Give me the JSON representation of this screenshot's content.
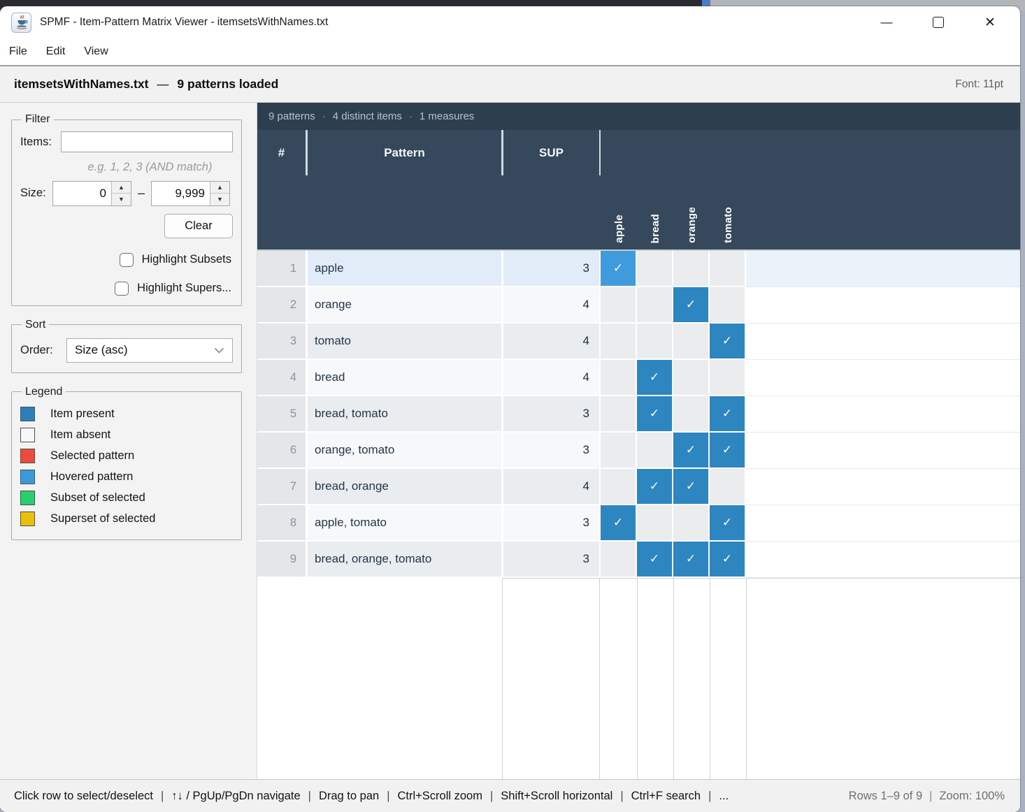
{
  "window": {
    "title": "SPMF - Item-Pattern Matrix Viewer - itemsetsWithNames.txt",
    "controls": {
      "minimize": "—",
      "close": "✕"
    }
  },
  "menu": {
    "items": [
      "File",
      "Edit",
      "View"
    ]
  },
  "header": {
    "filename": "itemsetsWithNames.txt",
    "separator": "—",
    "loaded": "9 patterns loaded",
    "font_label": "Font: 11pt"
  },
  "sidebar": {
    "filter": {
      "title": "Filter",
      "items_label": "Items:",
      "items_value": "",
      "hint": "e.g. 1, 2, 3 (AND match)",
      "size_label": "Size:",
      "size_min": "0",
      "range_dash": "–",
      "size_max": "9,999",
      "clear_label": "Clear",
      "checkbox_subsets": "Highlight Subsets",
      "checkbox_supersets": "Highlight Supers...",
      "subsets_checked": false,
      "supersets_checked": false
    },
    "sort": {
      "title": "Sort",
      "order_label": "Order:",
      "order_value": "Size (asc)"
    },
    "legend": {
      "title": "Legend",
      "entries": [
        {
          "label": "Item present",
          "color": "#2E7FB9"
        },
        {
          "label": "Item absent",
          "color": "#F7F7F7"
        },
        {
          "label": "Selected pattern",
          "color": "#E74C3C"
        },
        {
          "label": "Hovered pattern",
          "color": "#3D9AD9"
        },
        {
          "label": "Subset of selected",
          "color": "#2ECC71"
        },
        {
          "label": "Superset of selected",
          "color": "#E9C012"
        }
      ]
    }
  },
  "table": {
    "info_parts": [
      "9 patterns",
      "4 distinct items",
      "1 measures"
    ],
    "info_separator": "·",
    "columns": {
      "index": "#",
      "pattern": "Pattern",
      "sup": "SUP"
    },
    "items": [
      "apple",
      "bread",
      "orange",
      "tomato"
    ],
    "check_glyph": "✓",
    "rows": [
      {
        "n": "1",
        "pattern": "apple",
        "sup": "3",
        "cells": [
          1,
          0,
          0,
          0
        ],
        "hovered": true
      },
      {
        "n": "2",
        "pattern": "orange",
        "sup": "4",
        "cells": [
          0,
          0,
          1,
          0
        ]
      },
      {
        "n": "3",
        "pattern": "tomato",
        "sup": "4",
        "cells": [
          0,
          0,
          0,
          1
        ]
      },
      {
        "n": "4",
        "pattern": "bread",
        "sup": "4",
        "cells": [
          0,
          1,
          0,
          0
        ]
      },
      {
        "n": "5",
        "pattern": "bread, tomato",
        "sup": "3",
        "cells": [
          0,
          1,
          0,
          1
        ]
      },
      {
        "n": "6",
        "pattern": "orange, tomato",
        "sup": "3",
        "cells": [
          0,
          0,
          1,
          1
        ]
      },
      {
        "n": "7",
        "pattern": "bread, orange",
        "sup": "4",
        "cells": [
          0,
          1,
          1,
          0
        ]
      },
      {
        "n": "8",
        "pattern": "apple, tomato",
        "sup": "3",
        "cells": [
          1,
          0,
          0,
          1
        ]
      },
      {
        "n": "9",
        "pattern": "bread, orange, tomato",
        "sup": "3",
        "cells": [
          0,
          1,
          1,
          1
        ]
      }
    ]
  },
  "status_bar": {
    "hints": [
      "Click row to select/deselect",
      "↑↓ / PgUp/PgDn navigate",
      "Drag to pan",
      "Ctrl+Scroll zoom",
      "Shift+Scroll horizontal",
      "Ctrl+F search",
      "..."
    ],
    "hint_separator": "|",
    "rows_info": "Rows 1–9 of 9",
    "info_separator": "|",
    "zoom_info": "Zoom: 100%"
  },
  "colors": {
    "header_dark": "#2D3E4F",
    "header_slate": "#36495C",
    "present_cell": "#2E86C1",
    "hovered_present_cell": "#3F9BDB",
    "absent_cell": "#EBECED",
    "hover_row_bg": "#E1ECF8",
    "odd_row_bg": "#E9EDF0",
    "even_row_bg": "#F6F8FA"
  }
}
